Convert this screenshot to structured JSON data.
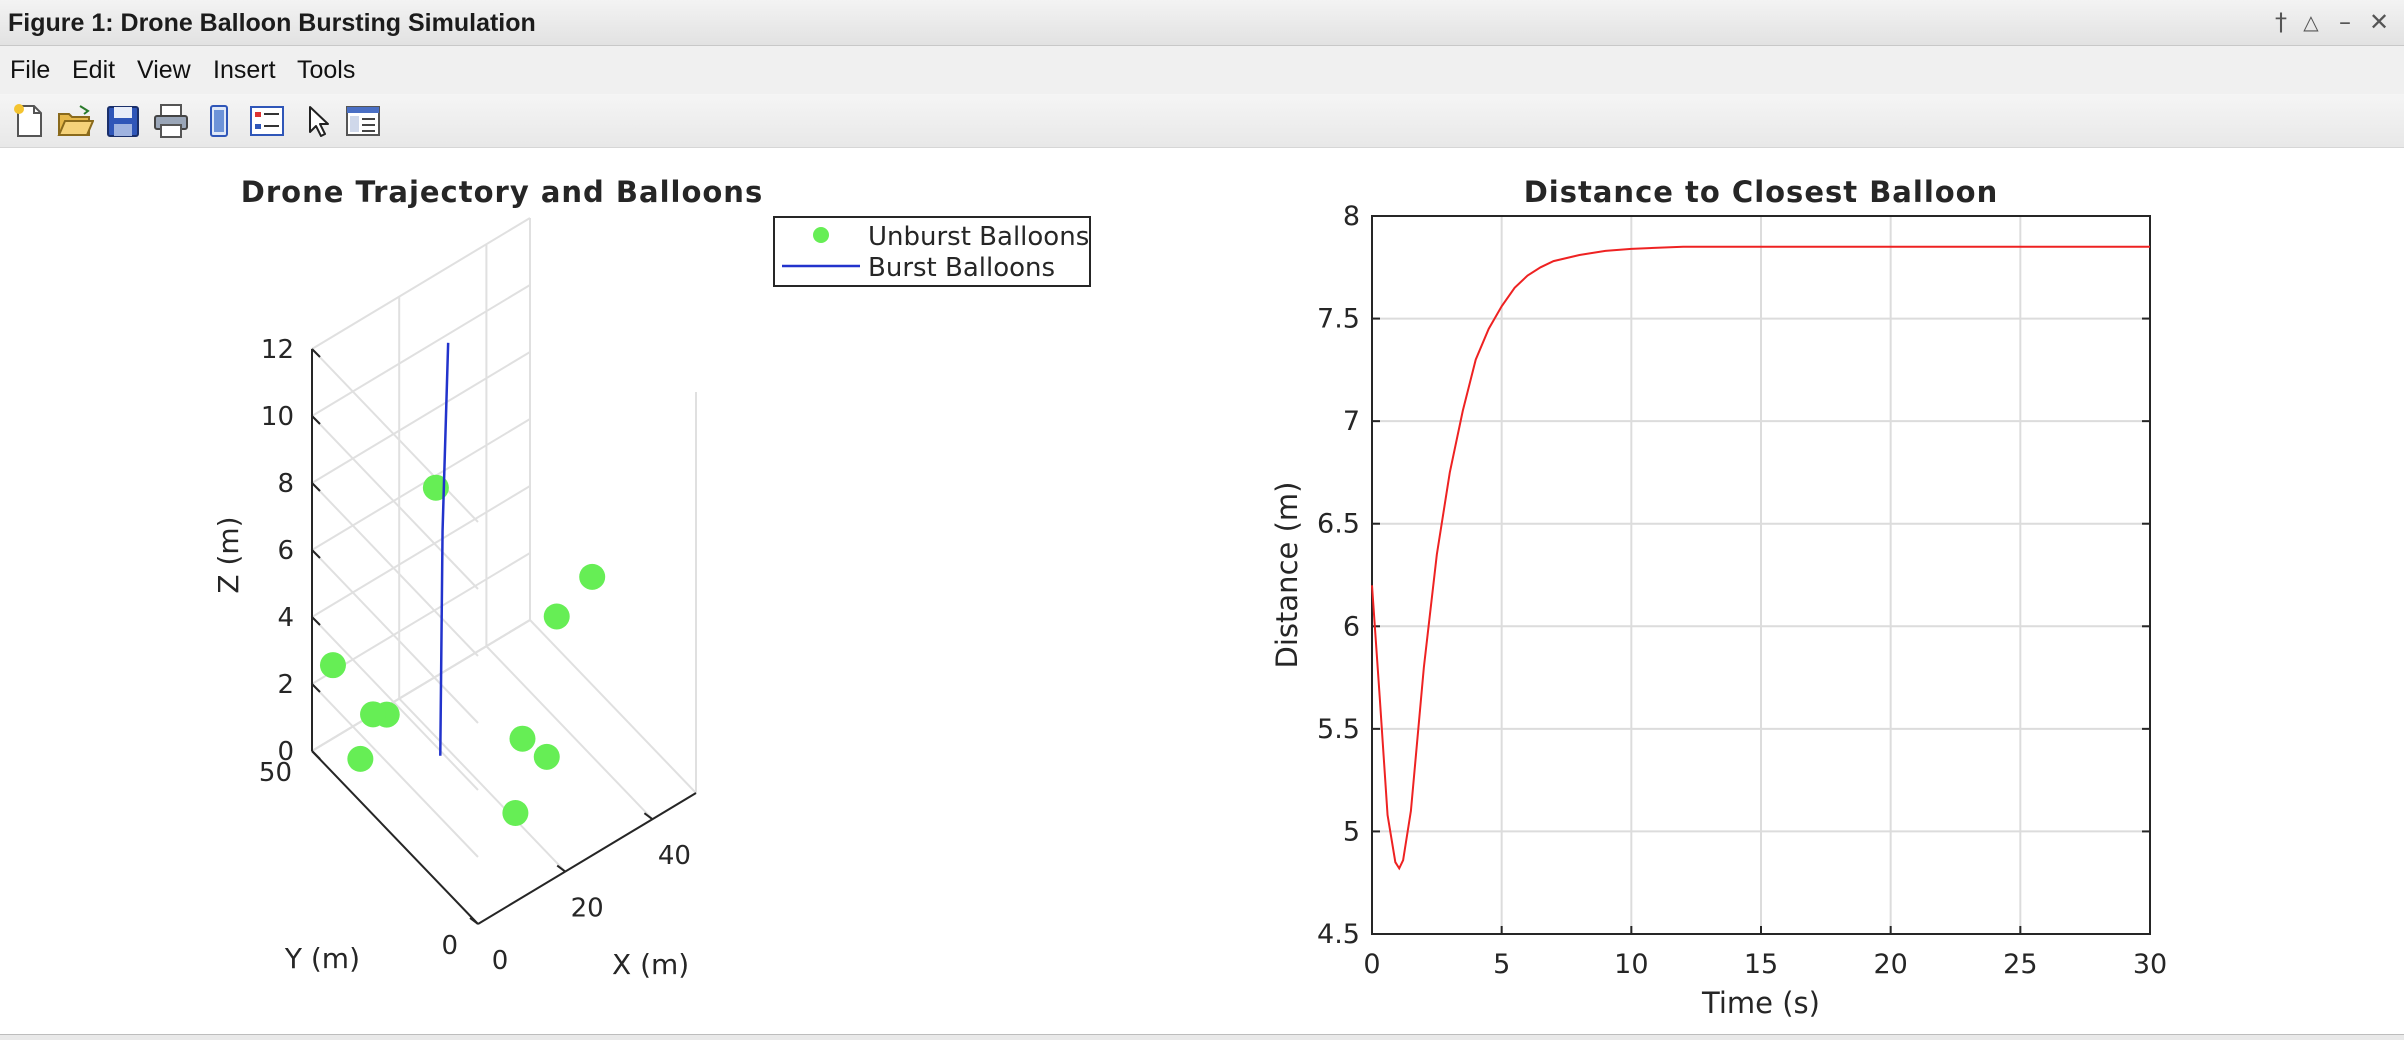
{
  "window": {
    "title": "Figure 1: Drone Balloon Bursting Simulation",
    "controls": [
      {
        "name": "pin-icon",
        "glyph": "†"
      },
      {
        "name": "undock-icon",
        "glyph": "△"
      },
      {
        "name": "minimize-icon",
        "glyph": "–"
      },
      {
        "name": "close-icon",
        "glyph": "✕"
      }
    ]
  },
  "menu": [
    "File",
    "Edit",
    "View",
    "Insert",
    "Tools"
  ],
  "toolbar": [
    {
      "name": "new-figure-icon"
    },
    {
      "name": "open-file-icon"
    },
    {
      "name": "save-figure-icon"
    },
    {
      "name": "print-figure-icon"
    },
    {
      "name": "link-plot-icon"
    },
    {
      "name": "insert-legend-icon"
    },
    {
      "name": "pointer-icon"
    },
    {
      "name": "property-inspector-icon"
    }
  ],
  "colors": {
    "balloon": "#66ee55",
    "trajectory": "#2233cc",
    "distance_line": "#ee2222",
    "grid": "#dcdcdc",
    "axis": "#262626"
  },
  "chart_data": [
    {
      "type": "scatter",
      "projection": "3d",
      "title": "Drone Trajectory and Balloons",
      "xlabel": "X (m)",
      "ylabel": "Y (m)",
      "zlabel": "Z (m)",
      "xticks": [
        "0",
        "20",
        "40"
      ],
      "yticks": [
        "0",
        "50"
      ],
      "zticks": [
        "0",
        "2",
        "4",
        "6",
        "8",
        "10",
        "12"
      ],
      "xlim": [
        0,
        50
      ],
      "ylim": [
        0,
        50
      ],
      "zlim": [
        0,
        12
      ],
      "grid": true,
      "legend": {
        "position": "outside-top-right",
        "entries": [
          {
            "label": "Unburst Balloons",
            "marker": "dot"
          },
          {
            "label": "Burst Balloons",
            "marker": "line"
          }
        ]
      },
      "series": [
        {
          "name": "Unburst Balloons",
          "points": [
            {
              "x": 1,
              "y": 14,
              "z": 11.5
            },
            {
              "x": 1,
              "y": 45,
              "z": 3
            },
            {
              "x": 8,
              "y": 38,
              "z": 1.7
            },
            {
              "x": 5,
              "y": 42,
              "z": 0.2
            },
            {
              "x": 30,
              "y": 5,
              "z": 7.5
            },
            {
              "x": 31,
              "y": 17,
              "z": 5
            },
            {
              "x": 14,
              "y": 50,
              "z": 0
            },
            {
              "x": 20,
              "y": 15,
              "z": 0.2
            },
            {
              "x": 31,
              "y": 20,
              "z": 0.5
            },
            {
              "x": 30,
              "y": 26,
              "z": 0.5
            }
          ]
        },
        {
          "name": "Burst Balloons",
          "points": [
            {
              "x": 18,
              "y": 35,
              "z": 0
            },
            {
              "x": 17,
              "y": 33,
              "z": 7
            },
            {
              "x": 16,
              "y": 30,
              "z": 13
            }
          ]
        }
      ]
    },
    {
      "type": "line",
      "title": "Distance to Closest Balloon",
      "xlabel": "Time (s)",
      "ylabel": "Distance (m)",
      "xlim": [
        0,
        30
      ],
      "ylim": [
        4.5,
        8
      ],
      "xticks": [
        "0",
        "5",
        "10",
        "15",
        "20",
        "25",
        "30"
      ],
      "yticks": [
        "4.5",
        "5",
        "5.5",
        "6",
        "6.5",
        "7",
        "7.5",
        "8"
      ],
      "grid": true,
      "x": [
        0,
        0.3,
        0.6,
        0.9,
        1.05,
        1.2,
        1.5,
        2,
        2.5,
        3,
        3.5,
        4,
        4.5,
        5,
        5.5,
        6,
        6.5,
        7,
        8,
        9,
        10,
        12,
        15,
        20,
        30
      ],
      "y": [
        6.2,
        5.65,
        5.08,
        4.85,
        4.82,
        4.86,
        5.1,
        5.8,
        6.35,
        6.75,
        7.05,
        7.3,
        7.45,
        7.56,
        7.65,
        7.71,
        7.75,
        7.78,
        7.81,
        7.83,
        7.84,
        7.85,
        7.85,
        7.85,
        7.85
      ]
    }
  ]
}
